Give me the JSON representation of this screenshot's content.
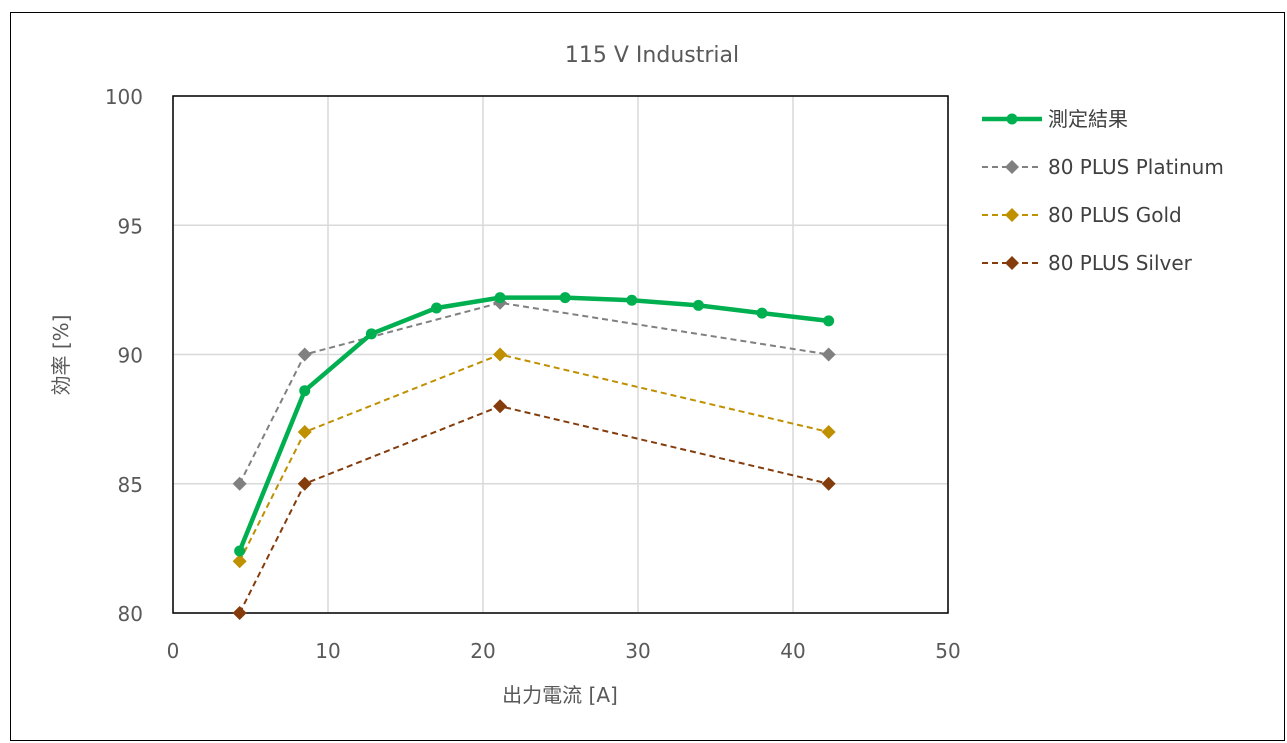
{
  "chart_data": {
    "type": "line",
    "title": "115 V Industrial",
    "xlabel": "出力電流 [A]",
    "ylabel": "効率 [%]",
    "xlim": [
      0,
      50
    ],
    "ylim": [
      80,
      100
    ],
    "x_ticks": [
      "0",
      "10",
      "20",
      "30",
      "40",
      "50"
    ],
    "y_ticks": [
      "80",
      "85",
      "90",
      "95",
      "100"
    ],
    "grid": true,
    "legend_position": "right",
    "series": [
      {
        "name": "測定結果",
        "color": "#00b050",
        "style": "solid",
        "marker": "circle",
        "x": [
          4.3,
          8.5,
          12.8,
          17.0,
          21.1,
          25.3,
          29.6,
          33.9,
          38.0,
          42.3
        ],
        "y": [
          82.4,
          88.6,
          90.8,
          91.8,
          92.2,
          92.2,
          92.1,
          91.9,
          91.6,
          91.3
        ]
      },
      {
        "name": "80 PLUS Platinum",
        "color": "#808080",
        "style": "dashed",
        "marker": "diamond",
        "x": [
          4.3,
          8.5,
          21.1,
          42.3
        ],
        "y": [
          85,
          90,
          92,
          90
        ]
      },
      {
        "name": "80 PLUS Gold",
        "color": "#bf9000",
        "style": "dashed",
        "marker": "diamond",
        "x": [
          4.3,
          8.5,
          21.1,
          42.3
        ],
        "y": [
          82,
          87,
          90,
          87
        ]
      },
      {
        "name": "80 PLUS Silver",
        "color": "#843c0c",
        "style": "dashed",
        "marker": "diamond",
        "x": [
          4.3,
          8.5,
          21.1,
          42.3
        ],
        "y": [
          80,
          85,
          88,
          85
        ]
      }
    ]
  }
}
